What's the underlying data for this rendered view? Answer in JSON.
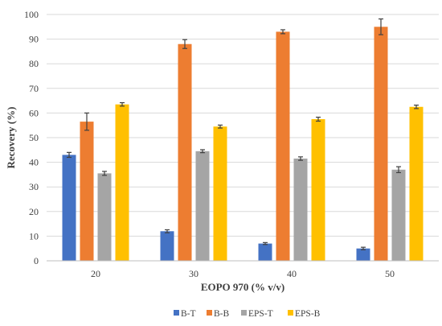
{
  "chart_data": {
    "type": "bar",
    "title": "",
    "xlabel": "EOPO 970 (% v/v)",
    "ylabel": "Recovery (%)",
    "ylim": [
      0,
      100
    ],
    "yticks": [
      0,
      10,
      20,
      30,
      40,
      50,
      60,
      70,
      80,
      90,
      100
    ],
    "grid": "horizontal",
    "legend_position": "bottom",
    "categories": [
      "20",
      "30",
      "40",
      "50"
    ],
    "series": [
      {
        "name": "B-T",
        "color": "#4472C4",
        "values": [
          43.0,
          12.0,
          7.0,
          5.0
        ],
        "errors": [
          1.0,
          0.6,
          0.4,
          0.5
        ]
      },
      {
        "name": "B-B",
        "color": "#ED7D31",
        "values": [
          56.5,
          88.0,
          93.0,
          95.0
        ],
        "errors": [
          3.5,
          1.8,
          0.8,
          3.2
        ]
      },
      {
        "name": "EPS-T",
        "color": "#A5A5A5",
        "values": [
          35.5,
          44.5,
          41.5,
          37.0
        ],
        "errors": [
          0.8,
          0.6,
          0.7,
          1.2
        ]
      },
      {
        "name": "EPS-B",
        "color": "#FFC000",
        "values": [
          63.5,
          54.5,
          57.5,
          62.5
        ],
        "errors": [
          0.7,
          0.6,
          0.8,
          0.7
        ]
      }
    ]
  }
}
